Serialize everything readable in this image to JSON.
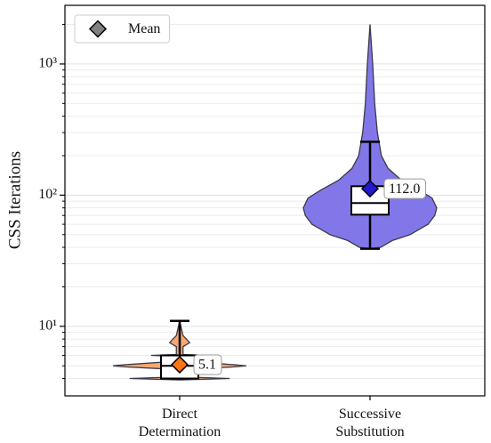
{
  "chart_data": {
    "type": "violin",
    "y_label": "CSS Iterations",
    "yscale": "log",
    "ylim": [
      2.95,
      2800
    ],
    "yticks": [
      {
        "value": 10,
        "label": "10¹"
      },
      {
        "value": 100,
        "label": "10²"
      },
      {
        "value": 1000,
        "label": "10³"
      }
    ],
    "minor_yticks": [
      4,
      5,
      6,
      7,
      8,
      9,
      20,
      30,
      40,
      50,
      60,
      70,
      80,
      90,
      200,
      300,
      400,
      500,
      600,
      700,
      800,
      900,
      2000
    ],
    "grid": true,
    "legend": {
      "label": "Mean",
      "loc": "upper left",
      "color": "#808080"
    },
    "categories": [
      "Direct Determination",
      "Successive Substitution"
    ],
    "groups": [
      {
        "color": "#f5a066",
        "mean_color": "#ff7410",
        "violin": {
          "y": [
            3.9,
            4,
            4.1,
            4.7,
            4.9,
            5,
            5.1,
            5.4,
            5.9,
            6,
            6.1,
            7,
            7.5,
            8,
            8.5,
            11
          ],
          "width": [
            0,
            0.75,
            0.1,
            0.1,
            0.8,
            1.0,
            0.8,
            0.1,
            0.1,
            0.43,
            0.05,
            0.05,
            0.15,
            0.1,
            0.05,
            0
          ]
        },
        "whislo": 4,
        "q1": 4,
        "median": 5,
        "q3": 6,
        "whishi": 11,
        "mean": 5.1,
        "mean_label": "5.1"
      },
      {
        "color": "#7468e6",
        "mean_color": "#2418d0",
        "violin": {
          "y": [
            39,
            40,
            45,
            50,
            60,
            70,
            80,
            95,
            110,
            130,
            160,
            200,
            300,
            500,
            1000,
            2000
          ],
          "width": [
            0,
            0.16,
            0.33,
            0.6,
            0.87,
            0.97,
            1.0,
            0.93,
            0.73,
            0.47,
            0.27,
            0.17,
            0.11,
            0.07,
            0.04,
            0
          ]
        },
        "whislo": 39,
        "q1": 71,
        "median": 87,
        "q3": 117,
        "whishi": 255,
        "mean": 112.0,
        "mean_label": "112.0"
      }
    ]
  }
}
